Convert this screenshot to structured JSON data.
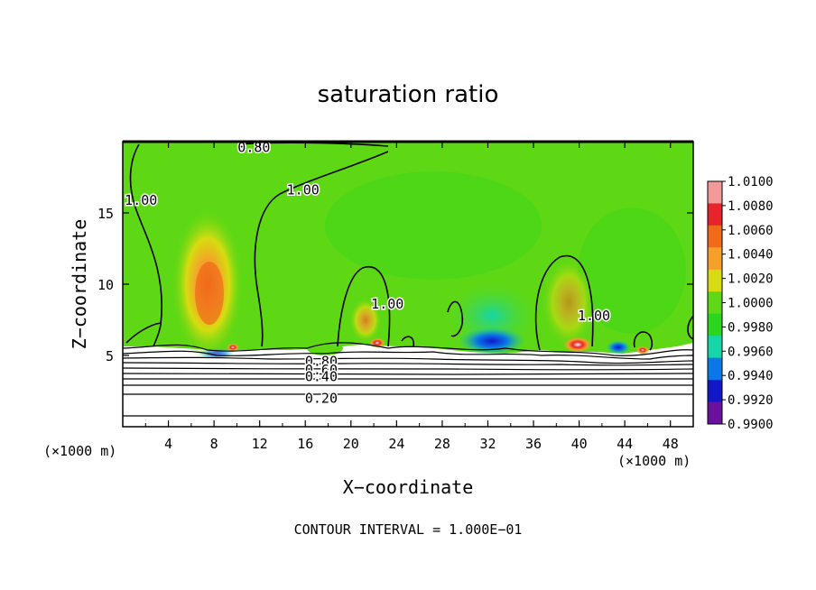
{
  "chart_data": {
    "type": "heatmap",
    "title": "saturation ratio",
    "xlabel": "X−coordinate",
    "ylabel": "Z−coordinate",
    "x_unit_label_left": "(×1000 m)",
    "x_unit_label_right": "(×1000 m)",
    "xlim": [
      0,
      50
    ],
    "ylim": [
      0,
      20
    ],
    "x_ticks": [
      "4",
      "8",
      "12",
      "16",
      "20",
      "24",
      "28",
      "32",
      "36",
      "40",
      "44",
      "48"
    ],
    "x_tick_values": [
      4,
      8,
      12,
      16,
      20,
      24,
      28,
      32,
      36,
      40,
      44,
      48
    ],
    "y_ticks": [
      "5",
      "10",
      "15"
    ],
    "y_tick_values": [
      5,
      10,
      15
    ],
    "footer": "CONTOUR INTERVAL = 1.000E−01",
    "colorbar": {
      "labels": [
        "1.0100",
        "1.0080",
        "1.0060",
        "1.0040",
        "1.0020",
        "1.0000",
        "0.9980",
        "0.9960",
        "0.9940",
        "0.9920",
        "0.9900"
      ],
      "min": 0.99,
      "max": 1.01,
      "colors": [
        "#f29a9a",
        "#e8242a",
        "#f06a1a",
        "#f5a02a",
        "#d7dc10",
        "#5ed814",
        "#2dd61e",
        "#15d6a8",
        "#0a78e8",
        "#1218c8",
        "#6a129e"
      ]
    },
    "contour_labels": [
      {
        "text": "0.80",
        "x": 11.5,
        "z": 19.6
      },
      {
        "text": "1.00",
        "x": 1.6,
        "z": 15.9
      },
      {
        "text": "1.00",
        "x": 15.8,
        "z": 16.6
      },
      {
        "text": "1.00",
        "x": 23.2,
        "z": 8.6
      },
      {
        "text": "1.00",
        "x": 41.3,
        "z": 7.8
      },
      {
        "text": "0.80",
        "x": 17.4,
        "z": 4.6
      },
      {
        "text": "0.60",
        "x": 17.4,
        "z": 4.0
      },
      {
        "text": "0.40",
        "x": 17.4,
        "z": 3.5
      },
      {
        "text": "0.20",
        "x": 17.4,
        "z": 2.0
      }
    ]
  }
}
